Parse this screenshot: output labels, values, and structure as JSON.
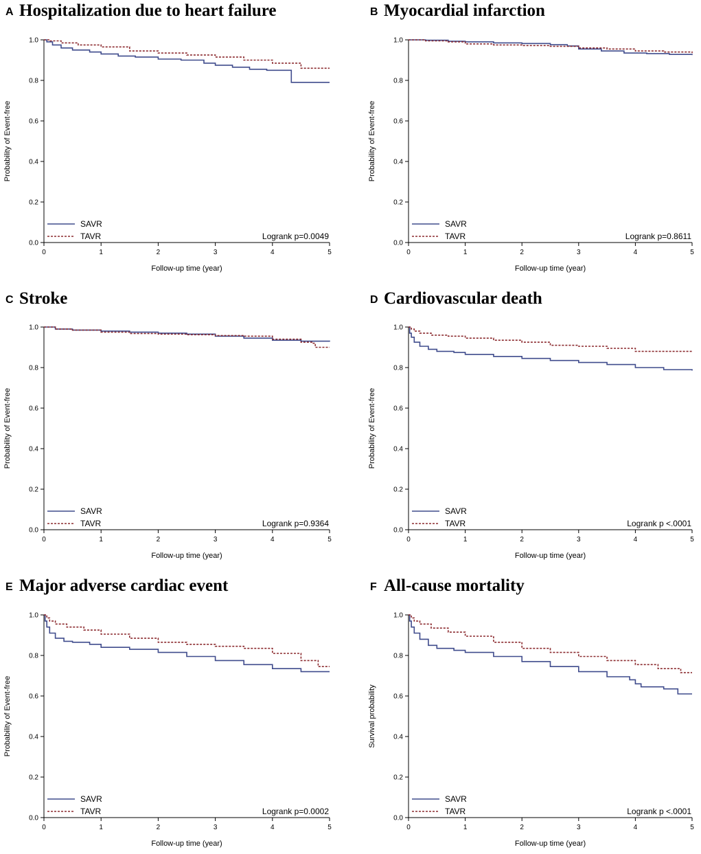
{
  "colors": {
    "SAVR": "#3F4B8C",
    "TAVR": "#8B2A2E",
    "axis": "#000000"
  },
  "chart_data": [
    {
      "type": "line",
      "panel_letter": "A",
      "title": "Hospitalization due to heart failure",
      "xlabel": "Follow-up time (year)",
      "ylabel": "Probability of Event-free",
      "xlim": [
        0,
        5
      ],
      "ylim": [
        0,
        1
      ],
      "xticks": [
        "0",
        "1",
        "2",
        "3",
        "4",
        "5"
      ],
      "yticks": [
        "0.0",
        "0.2",
        "0.4",
        "0.6",
        "0.8",
        "1.0"
      ],
      "legend_position": "bottom-left",
      "annotation": "Logrank p=0.0049",
      "series": [
        {
          "name": "SAVR",
          "style": "solid",
          "x": [
            0,
            0.05,
            0.15,
            0.3,
            0.5,
            0.8,
            1.0,
            1.3,
            1.6,
            2.0,
            2.4,
            2.8,
            3.0,
            3.3,
            3.6,
            3.9,
            4.2,
            4.3,
            4.33,
            5.0
          ],
          "y": [
            1.0,
            0.99,
            0.975,
            0.96,
            0.95,
            0.94,
            0.93,
            0.92,
            0.915,
            0.905,
            0.9,
            0.885,
            0.875,
            0.865,
            0.855,
            0.85,
            0.85,
            0.85,
            0.79,
            0.79
          ]
        },
        {
          "name": "TAVR",
          "style": "dashed",
          "x": [
            0,
            0.1,
            0.3,
            0.6,
            1.0,
            1.5,
            2.0,
            2.5,
            3.0,
            3.5,
            4.0,
            4.5,
            5.0
          ],
          "y": [
            1.0,
            0.995,
            0.985,
            0.975,
            0.965,
            0.945,
            0.935,
            0.925,
            0.915,
            0.9,
            0.885,
            0.86,
            0.86
          ]
        }
      ]
    },
    {
      "type": "line",
      "panel_letter": "B",
      "title": "Myocardial infarction",
      "xlabel": "Follow-up time (year)",
      "ylabel": "Probability of Event-free",
      "xlim": [
        0,
        5
      ],
      "ylim": [
        0,
        1
      ],
      "xticks": [
        "0",
        "1",
        "2",
        "3",
        "4",
        "5"
      ],
      "yticks": [
        "0.0",
        "0.2",
        "0.4",
        "0.6",
        "0.8",
        "1.0"
      ],
      "legend_position": "bottom-left",
      "annotation": "Logrank p=0.8611",
      "series": [
        {
          "name": "SAVR",
          "style": "solid",
          "x": [
            0,
            0.3,
            0.7,
            1.0,
            1.5,
            2.0,
            2.5,
            2.8,
            3.0,
            3.4,
            3.8,
            4.2,
            4.6,
            5.0
          ],
          "y": [
            1.0,
            0.998,
            0.993,
            0.99,
            0.985,
            0.982,
            0.976,
            0.97,
            0.955,
            0.945,
            0.935,
            0.932,
            0.928,
            0.925
          ]
        },
        {
          "name": "TAVR",
          "style": "dashed",
          "x": [
            0,
            0.3,
            0.7,
            1.0,
            1.5,
            2.0,
            2.5,
            3.0,
            3.5,
            4.0,
            4.5,
            5.0
          ],
          "y": [
            1.0,
            0.995,
            0.99,
            0.98,
            0.975,
            0.972,
            0.968,
            0.96,
            0.955,
            0.945,
            0.94,
            0.935
          ]
        }
      ]
    },
    {
      "type": "line",
      "panel_letter": "C",
      "title": "Stroke",
      "xlabel": "Follow-up time (year)",
      "ylabel": "Probability of Event-free",
      "xlim": [
        0,
        5
      ],
      "ylim": [
        0,
        1
      ],
      "xticks": [
        "0",
        "1",
        "2",
        "3",
        "4",
        "5"
      ],
      "yticks": [
        "0.0",
        "0.2",
        "0.4",
        "0.6",
        "0.8",
        "1.0"
      ],
      "legend_position": "bottom-left",
      "annotation": "Logrank p=0.9364",
      "series": [
        {
          "name": "SAVR",
          "style": "solid",
          "x": [
            0,
            0.2,
            0.5,
            1.0,
            1.5,
            2.0,
            2.5,
            3.0,
            3.5,
            4.0,
            4.5,
            5.0
          ],
          "y": [
            1.0,
            0.99,
            0.985,
            0.98,
            0.975,
            0.97,
            0.965,
            0.955,
            0.945,
            0.935,
            0.93,
            0.928
          ]
        },
        {
          "name": "TAVR",
          "style": "dashed",
          "x": [
            0,
            0.2,
            0.5,
            1.0,
            1.5,
            2.0,
            2.5,
            3.0,
            3.5,
            4.0,
            4.5,
            4.7,
            4.75,
            5.0
          ],
          "y": [
            1.0,
            0.99,
            0.985,
            0.975,
            0.968,
            0.965,
            0.962,
            0.958,
            0.955,
            0.94,
            0.925,
            0.92,
            0.9,
            0.9
          ]
        }
      ]
    },
    {
      "type": "line",
      "panel_letter": "D",
      "title": "Cardiovascular death",
      "xlabel": "Follow-up time (year)",
      "ylabel": "Probability of Event-free",
      "xlim": [
        0,
        5
      ],
      "ylim": [
        0,
        1
      ],
      "xticks": [
        "0",
        "1",
        "2",
        "3",
        "4",
        "5"
      ],
      "yticks": [
        "0.0",
        "0.2",
        "0.4",
        "0.6",
        "0.8",
        "1.0"
      ],
      "legend_position": "bottom-left",
      "annotation": "Logrank p <.0001",
      "series": [
        {
          "name": "SAVR",
          "style": "solid",
          "x": [
            0,
            0.02,
            0.05,
            0.1,
            0.2,
            0.35,
            0.5,
            0.8,
            1.0,
            1.5,
            2.0,
            2.5,
            3.0,
            3.5,
            4.0,
            4.5,
            5.0
          ],
          "y": [
            1.0,
            0.97,
            0.95,
            0.925,
            0.905,
            0.89,
            0.88,
            0.875,
            0.865,
            0.855,
            0.845,
            0.835,
            0.825,
            0.815,
            0.8,
            0.79,
            0.785
          ]
        },
        {
          "name": "TAVR",
          "style": "dashed",
          "x": [
            0,
            0.05,
            0.1,
            0.2,
            0.4,
            0.7,
            1.0,
            1.5,
            2.0,
            2.5,
            3.0,
            3.5,
            4.0,
            4.5,
            5.0
          ],
          "y": [
            1.0,
            0.99,
            0.98,
            0.97,
            0.96,
            0.955,
            0.945,
            0.935,
            0.925,
            0.91,
            0.905,
            0.895,
            0.88,
            0.88,
            0.88
          ]
        }
      ]
    },
    {
      "type": "line",
      "panel_letter": "E",
      "title": "Major adverse cardiac event",
      "xlabel": "Follow-up time (year)",
      "ylabel": "Probability of Event-free",
      "xlim": [
        0,
        5
      ],
      "ylim": [
        0,
        1
      ],
      "xticks": [
        "0",
        "1",
        "2",
        "3",
        "4",
        "5"
      ],
      "yticks": [
        "0.0",
        "0.2",
        "0.4",
        "0.6",
        "0.8",
        "1.0"
      ],
      "legend_position": "bottom-left",
      "annotation": "Logrank p=0.0002",
      "series": [
        {
          "name": "SAVR",
          "style": "solid",
          "x": [
            0,
            0.02,
            0.05,
            0.1,
            0.2,
            0.35,
            0.5,
            0.8,
            1.0,
            1.5,
            2.0,
            2.5,
            3.0,
            3.5,
            4.0,
            4.5,
            5.0
          ],
          "y": [
            1.0,
            0.97,
            0.94,
            0.91,
            0.885,
            0.87,
            0.865,
            0.855,
            0.84,
            0.83,
            0.815,
            0.795,
            0.775,
            0.755,
            0.735,
            0.72,
            0.72
          ]
        },
        {
          "name": "TAVR",
          "style": "dashed",
          "x": [
            0,
            0.05,
            0.1,
            0.2,
            0.4,
            0.7,
            1.0,
            1.5,
            2.0,
            2.5,
            3.0,
            3.5,
            4.0,
            4.5,
            4.8,
            5.0
          ],
          "y": [
            1.0,
            0.985,
            0.97,
            0.955,
            0.94,
            0.925,
            0.905,
            0.885,
            0.865,
            0.855,
            0.845,
            0.835,
            0.81,
            0.775,
            0.745,
            0.745
          ]
        }
      ]
    },
    {
      "type": "line",
      "panel_letter": "F",
      "title": "All-cause mortality",
      "xlabel": "Follow-up time (year)",
      "ylabel": "Survival probability",
      "xlim": [
        0,
        5
      ],
      "ylim": [
        0,
        1
      ],
      "xticks": [
        "0",
        "1",
        "2",
        "3",
        "4",
        "5"
      ],
      "yticks": [
        "0.0",
        "0.2",
        "0.4",
        "0.6",
        "0.8",
        "1.0"
      ],
      "legend_position": "bottom-left",
      "annotation": "Logrank p <.0001",
      "series": [
        {
          "name": "SAVR",
          "style": "solid",
          "x": [
            0,
            0.02,
            0.05,
            0.1,
            0.2,
            0.35,
            0.5,
            0.8,
            1.0,
            1.5,
            2.0,
            2.5,
            3.0,
            3.5,
            3.9,
            4.0,
            4.1,
            4.5,
            4.75,
            5.0
          ],
          "y": [
            1.0,
            0.97,
            0.94,
            0.91,
            0.88,
            0.85,
            0.835,
            0.825,
            0.815,
            0.795,
            0.77,
            0.745,
            0.72,
            0.695,
            0.68,
            0.66,
            0.645,
            0.635,
            0.61,
            0.61
          ]
        },
        {
          "name": "TAVR",
          "style": "dashed",
          "x": [
            0,
            0.05,
            0.1,
            0.2,
            0.4,
            0.7,
            1.0,
            1.5,
            2.0,
            2.5,
            3.0,
            3.5,
            4.0,
            4.4,
            4.8,
            5.0
          ],
          "y": [
            1.0,
            0.985,
            0.97,
            0.955,
            0.935,
            0.915,
            0.895,
            0.865,
            0.835,
            0.815,
            0.795,
            0.775,
            0.755,
            0.735,
            0.715,
            0.715
          ]
        }
      ]
    }
  ]
}
